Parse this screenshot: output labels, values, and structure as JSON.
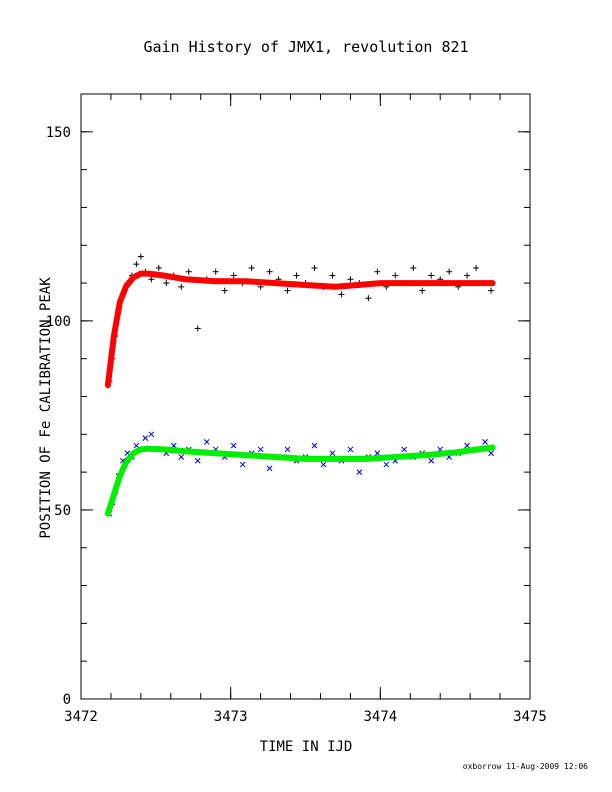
{
  "chart_data": {
    "type": "scatter",
    "title": "Gain History of JMX1, revolution 821",
    "xlabel": "TIME IN IJD",
    "ylabel": "POSITION OF Fe CALIBRATION PEAK",
    "xlim": [
      3472,
      3475
    ],
    "ylim": [
      0,
      160
    ],
    "xticks": [
      3472,
      3473,
      3474,
      3475
    ],
    "yticks": [
      0,
      50,
      100,
      150
    ],
    "grid": false,
    "series": [
      {
        "marker": "plus",
        "color": "#000000",
        "x": [
          3472.19,
          3472.21,
          3472.23,
          3472.25,
          3472.28,
          3472.31,
          3472.34,
          3472.37,
          3472.4,
          3472.43,
          3472.47,
          3472.52,
          3472.57,
          3472.62,
          3472.67,
          3472.72,
          3472.78,
          3472.84,
          3472.9,
          3472.96,
          3473.02,
          3473.08,
          3473.14,
          3473.2,
          3473.26,
          3473.32,
          3473.38,
          3473.44,
          3473.5,
          3473.56,
          3473.62,
          3473.68,
          3473.74,
          3473.8,
          3473.86,
          3473.92,
          3473.98,
          3474.04,
          3474.1,
          3474.16,
          3474.22,
          3474.28,
          3474.34,
          3474.4,
          3474.46,
          3474.52,
          3474.58,
          3474.64,
          3474.7,
          3474.74
        ],
        "y": [
          84,
          90,
          96,
          103,
          107,
          110,
          112,
          115,
          117,
          113,
          111,
          114,
          110,
          112,
          109,
          113,
          98,
          111,
          113,
          108,
          112,
          110,
          114,
          109,
          113,
          111,
          108,
          112,
          110,
          114,
          109,
          112,
          107,
          111,
          110,
          106,
          113,
          109,
          112,
          110,
          114,
          108,
          112,
          111,
          113,
          109,
          112,
          114,
          110,
          108
        ]
      },
      {
        "marker": "x",
        "color": "#0000cc",
        "x": [
          3472.19,
          3472.21,
          3472.23,
          3472.25,
          3472.28,
          3472.31,
          3472.34,
          3472.37,
          3472.4,
          3472.43,
          3472.47,
          3472.52,
          3472.57,
          3472.62,
          3472.67,
          3472.72,
          3472.78,
          3472.84,
          3472.9,
          3472.96,
          3473.02,
          3473.08,
          3473.14,
          3473.2,
          3473.26,
          3473.32,
          3473.38,
          3473.44,
          3473.5,
          3473.56,
          3473.62,
          3473.68,
          3473.74,
          3473.8,
          3473.86,
          3473.92,
          3473.98,
          3474.04,
          3474.1,
          3474.16,
          3474.22,
          3474.28,
          3474.34,
          3474.4,
          3474.46,
          3474.52,
          3474.58,
          3474.64,
          3474.7,
          3474.74
        ],
        "y": [
          49,
          52,
          55,
          59,
          63,
          65,
          64,
          67,
          66,
          69,
          70,
          66,
          65,
          67,
          64,
          66,
          63,
          68,
          66,
          64,
          67,
          62,
          65,
          66,
          61,
          64,
          66,
          63,
          64,
          67,
          62,
          65,
          63,
          66,
          60,
          64,
          65,
          62,
          63,
          66,
          64,
          65,
          63,
          66,
          64,
          65,
          67,
          66,
          68,
          65
        ]
      },
      {
        "marker": "line",
        "color": "#ff0000",
        "x": [
          3472.18,
          3472.22,
          3472.26,
          3472.3,
          3472.35,
          3472.4,
          3472.45,
          3472.55,
          3472.7,
          3472.9,
          3473.1,
          3473.3,
          3473.5,
          3473.7,
          3473.85,
          3474.0,
          3474.2,
          3474.4,
          3474.6,
          3474.75
        ],
        "y": [
          83,
          96,
          105,
          109,
          111.5,
          112.5,
          112.5,
          112,
          111,
          110.5,
          110.5,
          110,
          109.5,
          109,
          109.5,
          110,
          110,
          110,
          110,
          110
        ]
      },
      {
        "marker": "line",
        "color": "#00ee00",
        "x": [
          3472.18,
          3472.22,
          3472.26,
          3472.3,
          3472.35,
          3472.4,
          3472.45,
          3472.55,
          3472.7,
          3472.9,
          3473.1,
          3473.3,
          3473.5,
          3473.7,
          3473.9,
          3474.1,
          3474.3,
          3474.5,
          3474.65,
          3474.75
        ],
        "y": [
          49,
          54,
          59,
          62.5,
          65,
          66,
          66.2,
          66,
          65.5,
          65,
          64.5,
          64,
          63.5,
          63.5,
          63.5,
          64,
          64.5,
          65.2,
          66,
          66.5
        ]
      }
    ]
  },
  "footer": "oxborrow 11-Aug-2009 12:06"
}
